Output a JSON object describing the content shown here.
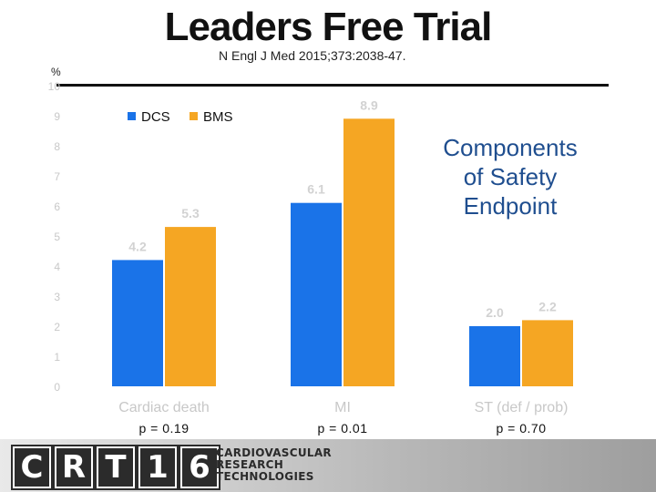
{
  "header": {
    "title": "Leaders Free Trial",
    "citation": "N Engl J Med 2015;373:2038-47."
  },
  "callout": {
    "line1": "Components",
    "line2": "of Safety",
    "line3": "Endpoint"
  },
  "pvalues": [
    "p = 0.19",
    "p = 0.01",
    "p = 0.70"
  ],
  "logo": {
    "letters": [
      "C",
      "R",
      "T",
      "1",
      "6"
    ],
    "line1": "CARDIOVASCULAR",
    "line2": "RESEARCH",
    "line3": "TECHNOLOGIES"
  },
  "colors": {
    "DCS": "#1a73e8",
    "BMS": "#f5a623",
    "axis_text": "#c8c8c8",
    "rule": "#111111"
  },
  "chart_data": {
    "type": "bar",
    "ylabel": "%",
    "ylim": [
      0,
      10
    ],
    "yticks": [
      0,
      1,
      2,
      3,
      4,
      5,
      6,
      7,
      8,
      9,
      10
    ],
    "categories": [
      "Cardiac death",
      "MI",
      "ST (def / prob)"
    ],
    "series": [
      {
        "name": "DCS",
        "values": [
          4.2,
          6.1,
          2.0
        ],
        "labels": [
          "4.2",
          "6.1",
          "2.0"
        ]
      },
      {
        "name": "BMS",
        "values": [
          5.3,
          8.9,
          2.2
        ],
        "labels": [
          "5.3",
          "8.9",
          "2.2"
        ]
      }
    ],
    "legend": "top-left",
    "grid": false
  }
}
